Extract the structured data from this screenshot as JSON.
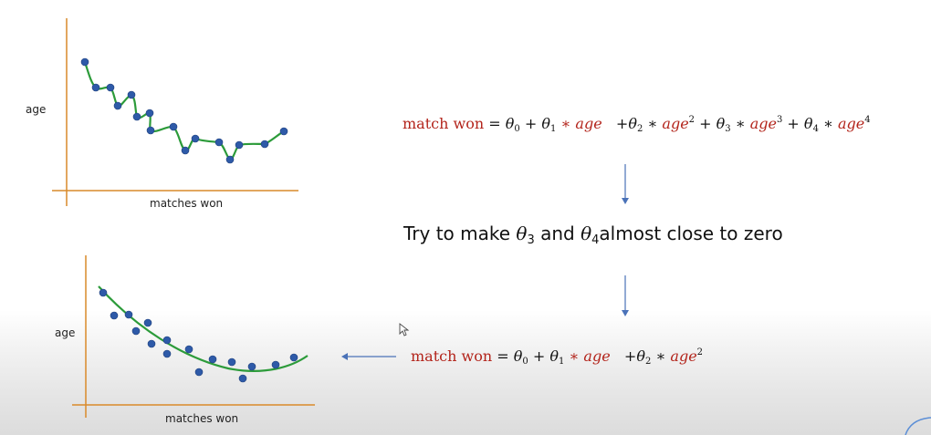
{
  "colors": {
    "axis": "#d98a2a",
    "point": "#2e5aa8",
    "curve": "#2c9b3a",
    "arrow": "#4a72b8",
    "red": "#b3241b"
  },
  "top_chart": {
    "ylabel": "age",
    "xlabel": "matches won"
  },
  "bottom_chart": {
    "ylabel": "age",
    "xlabel": "matches won"
  },
  "eq1": {
    "lhs": "match won",
    "eq": "=",
    "t0": "θ",
    "t0_sub": "0",
    "plus": "+",
    "t1": "θ",
    "t1_sub": "1",
    "mul": "∗",
    "age": "age",
    "t2": "θ",
    "t2_sub": "2",
    "t3": "θ",
    "t3_sub": "3",
    "t4": "θ",
    "t4_sub": "4",
    "sup2": "2",
    "sup3": "3",
    "sup4": "4"
  },
  "middle": {
    "pre": "Try to make ",
    "t3": "θ",
    "t3_sub": "3",
    "and": " and ",
    "t4": "θ",
    "t4_sub": "4",
    "post": "almost close to zero"
  },
  "eq2": {
    "lhs": "match won",
    "eq": "=",
    "t0": "θ",
    "t0_sub": "0",
    "plus": "+",
    "t1": "θ",
    "t1_sub": "1",
    "mul": "∗",
    "age": "age",
    "t2": "θ",
    "t2_sub": "2",
    "sup2": "2"
  }
}
